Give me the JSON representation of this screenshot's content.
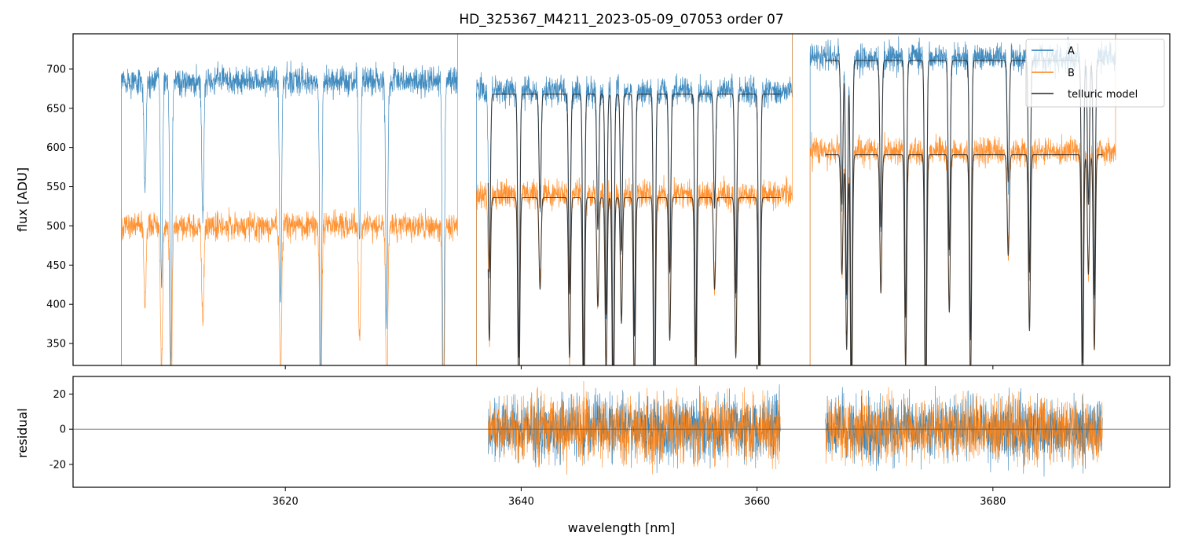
{
  "chart_data": {
    "type": "line",
    "title": "HD_325367_M4211_2023-05-09_07053  order 07",
    "xlabel": "wavelength [nm]",
    "x_ticks": [
      3620,
      3640,
      3660,
      3680
    ],
    "xlim": [
      3602,
      3695
    ],
    "top_panel": {
      "ylabel": "flux [ADU]",
      "ylim": [
        322,
        745
      ],
      "y_ticks": [
        350,
        400,
        450,
        500,
        550,
        600,
        650,
        700
      ],
      "legend": {
        "position": "top-right",
        "entries": [
          "A",
          "B",
          "telluric model"
        ]
      },
      "segments": [
        {
          "x_start": 3606.1,
          "x_end": 3634.6,
          "levels": {
            "A": 685,
            "B": 500
          }
        },
        {
          "x_start": 3636.2,
          "x_end": 3663.0,
          "levels": {
            "A": 672,
            "B": 540
          },
          "model_x_start": 3637.2,
          "model_x_end": 3662.0
        },
        {
          "x_start": 3664.5,
          "x_end": 3690.4,
          "levels": {
            "A": 715,
            "B": 595
          },
          "model_x_start": 3665.8,
          "model_x_end": 3689.3
        }
      ],
      "absorption_lines_nm": [
        3608.1,
        3609.5,
        3610.3,
        3613.0,
        3619.6,
        3623.0,
        3626.3,
        3628.6,
        3633.4,
        3637.3,
        3639.8,
        3641.6,
        3644.1,
        3645.3,
        3646.5,
        3647.2,
        3647.8,
        3648.5,
        3649.6,
        3651.3,
        3652.6,
        3654.8,
        3656.4,
        3658.2,
        3660.2,
        3667.2,
        3667.6,
        3668.0,
        3670.5,
        3672.6,
        3674.3,
        3676.3,
        3678.1,
        3681.3,
        3683.1,
        3687.6,
        3688.1,
        3688.6
      ]
    },
    "bottom_panel": {
      "ylabel": "residual",
      "ylim": [
        -33,
        30
      ],
      "y_ticks": [
        -20,
        0,
        20
      ],
      "zero_line": 0,
      "segments": [
        {
          "x_start": 3637.2,
          "x_end": 3662.0
        },
        {
          "x_start": 3665.8,
          "x_end": 3689.3
        }
      ],
      "noise_sigma": 9
    },
    "series": [
      {
        "name": "A",
        "color": "#1f77b4"
      },
      {
        "name": "B",
        "color": "#ff7f0e"
      },
      {
        "name": "telluric model",
        "color": "#262626"
      }
    ]
  }
}
